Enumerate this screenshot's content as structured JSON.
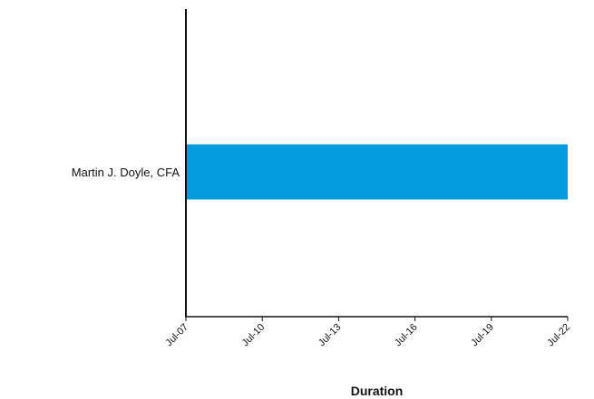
{
  "chart_data": {
    "type": "bar",
    "orientation": "horizontal",
    "title": "",
    "xlabel": "Duration",
    "ylabel": "",
    "categories": [
      "Martin J. Doyle, CFA"
    ],
    "series": [
      {
        "values": [
          {
            "start": "Jul-07",
            "end": "Jul-22"
          }
        ]
      }
    ],
    "x_ticks": [
      "Jul-07",
      "Jul-10",
      "Jul-13",
      "Jul-16",
      "Jul-19",
      "Jul-22"
    ],
    "xlim": [
      "Jul-07",
      "Jul-22"
    ],
    "grid": false,
    "legend": "none",
    "colors": {
      "bar": "#039BDC",
      "axis": "#111111",
      "text": "#111111"
    }
  }
}
